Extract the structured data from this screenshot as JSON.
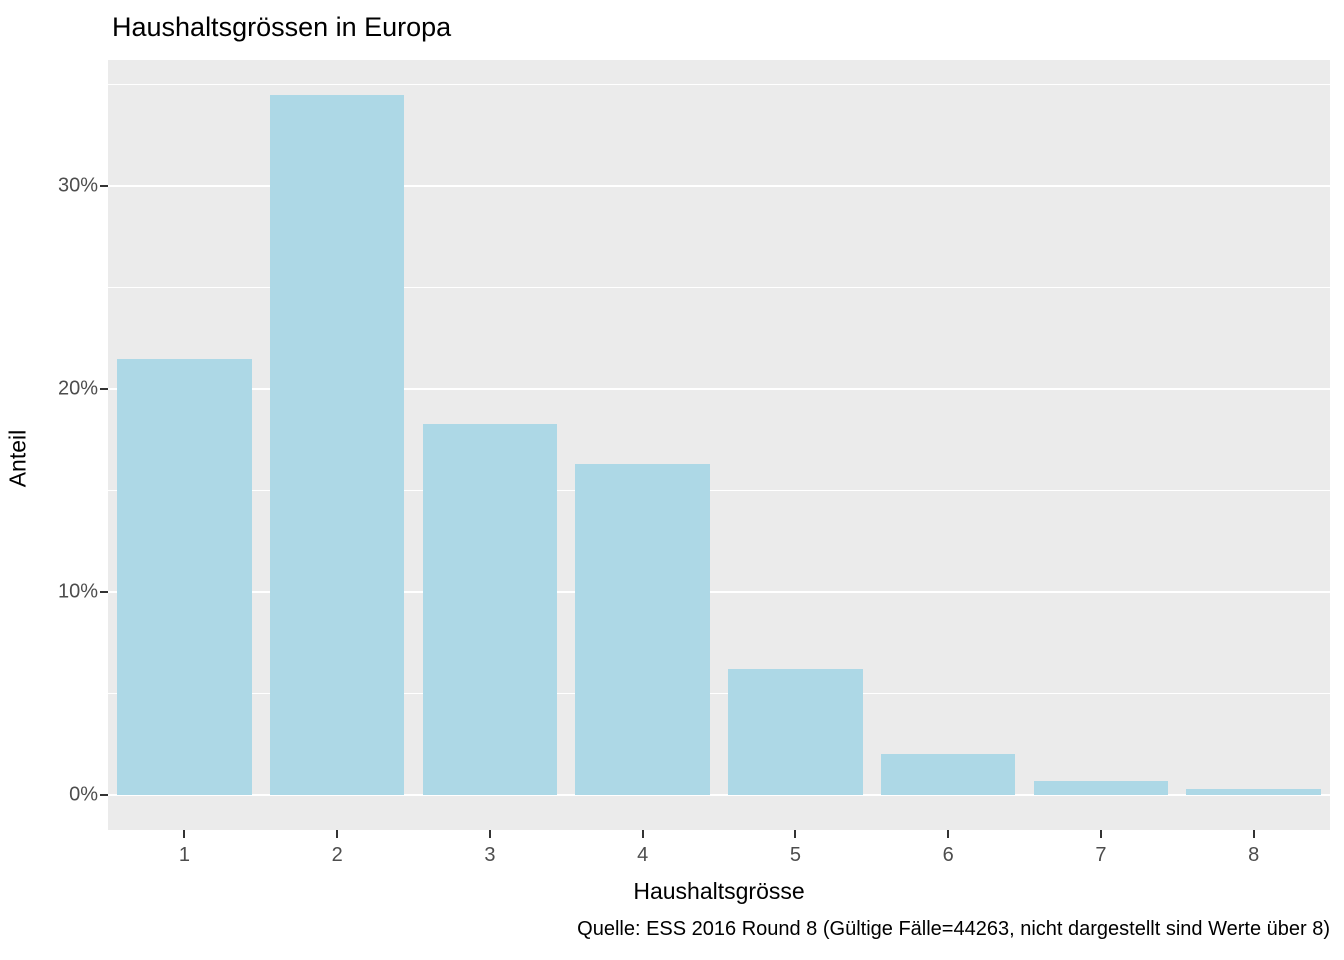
{
  "title": "Haushaltsgrössen in Europa",
  "caption": "Quelle: ESS 2016 Round 8 (Gültige Fälle=44263, nicht dargestellt sind Werte über 8)",
  "chart_data": {
    "type": "bar",
    "title": "Haushaltsgrössen in Europa",
    "xlabel": "Haushaltsgrösse",
    "ylabel": "Anteil",
    "caption": "Quelle: ESS 2016 Round 8 (Gültige Fälle=44263, nicht dargestellt sind Werte über 8)",
    "categories": [
      "1",
      "2",
      "3",
      "4",
      "5",
      "6",
      "7",
      "8"
    ],
    "values": [
      21.5,
      34.5,
      18.3,
      16.3,
      6.2,
      2.0,
      0.7,
      0.3
    ],
    "y_ticks": [
      0,
      10,
      20,
      30
    ],
    "y_tick_labels": [
      "0%",
      "10%",
      "20%",
      "30%"
    ],
    "y_minor_ticks": [
      5,
      15,
      25,
      35
    ],
    "ylim": [
      -1.725,
      36.225
    ],
    "grid": "major-and-minor",
    "legend": "none",
    "colors": {
      "bar_fill": "#ADD8E6",
      "panel_bg": "#EBEBEB",
      "gridline": "#FFFFFF",
      "axis_text": "#4D4D4D",
      "tick_mark": "#333333",
      "title_text": "#000000"
    }
  }
}
